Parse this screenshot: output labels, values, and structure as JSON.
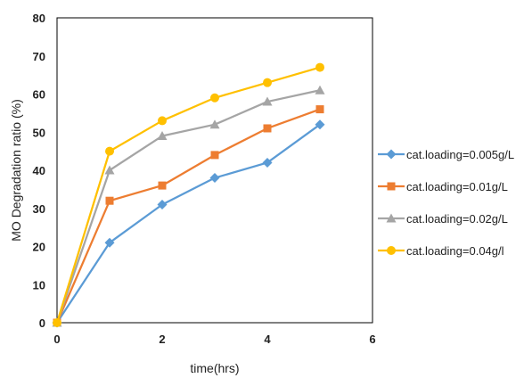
{
  "chart_data": {
    "type": "line",
    "title": "",
    "xlabel": "time(hrs)",
    "ylabel": "MO Degradation ratio (%)",
    "xlim": [
      0,
      6
    ],
    "ylim": [
      0,
      80
    ],
    "x_ticks": [
      0,
      2,
      4,
      6
    ],
    "y_ticks": [
      0,
      10,
      20,
      30,
      40,
      50,
      60,
      70,
      80
    ],
    "x": [
      0,
      1,
      2,
      3,
      4,
      5
    ],
    "grid": false,
    "legend_position": "right",
    "series": [
      {
        "name": "cat.loading=0.005g/L",
        "values": [
          0,
          21,
          31,
          38,
          42,
          52
        ],
        "color": "#5b9bd5",
        "marker": "diamond"
      },
      {
        "name": "cat.loading=0.01g/L",
        "values": [
          0,
          32,
          36,
          44,
          51,
          56
        ],
        "color": "#ed7d31",
        "marker": "square"
      },
      {
        "name": "cat.loading=0.02g/L",
        "values": [
          0,
          40,
          49,
          52,
          58,
          61
        ],
        "color": "#a5a5a5",
        "marker": "triangle"
      },
      {
        "name": "cat.loading=0.04g/l",
        "values": [
          0,
          45,
          53,
          59,
          63,
          67
        ],
        "color": "#ffc000",
        "marker": "circle"
      }
    ]
  }
}
